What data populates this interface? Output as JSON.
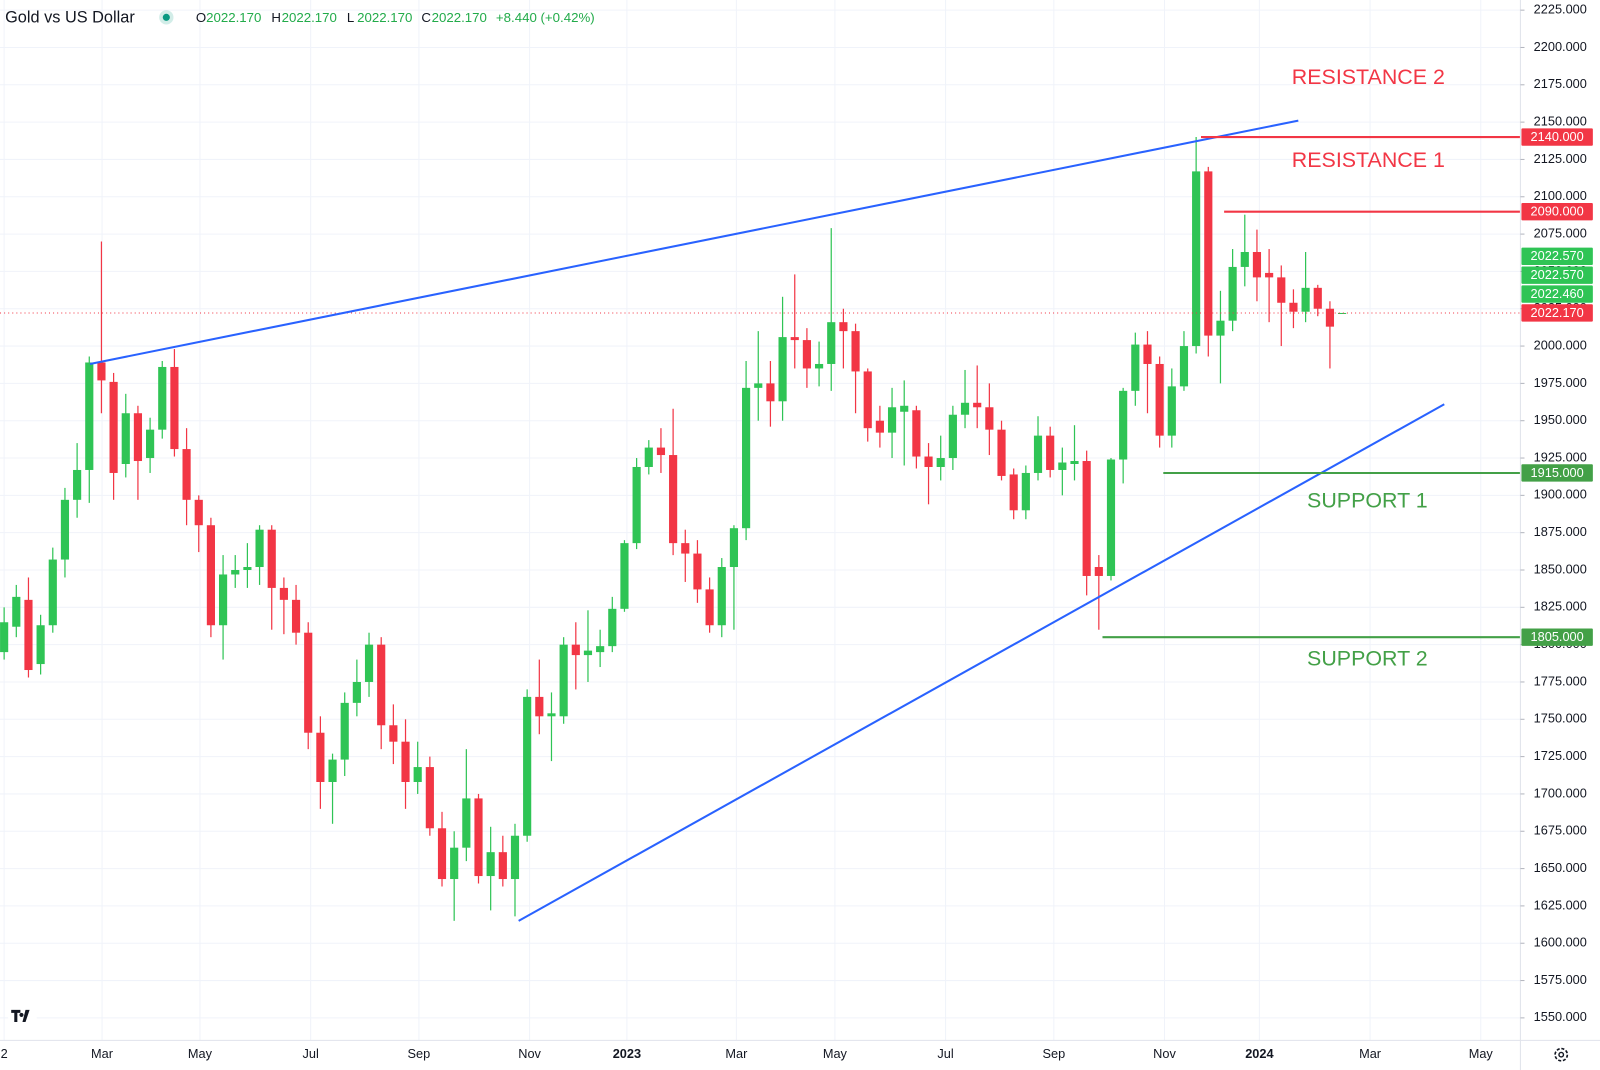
{
  "chart_data": {
    "type": "candlestick",
    "title": "Gold vs US Dollar",
    "header": {
      "ohlc": [
        {
          "key": "O",
          "value": "2022.170"
        },
        {
          "key": "H",
          "value": "2022.170"
        },
        {
          "key": "L",
          "value": "2022.170"
        },
        {
          "key": "C",
          "value": "2022.170"
        }
      ],
      "change": "+8.440 (+0.42%)"
    },
    "series": {
      "up_color": "#2fc455",
      "down_color": "#f23645",
      "open": [
        1795,
        1812,
        1830,
        1787,
        1813,
        1857,
        1897,
        1917,
        1989,
        1976,
        1921,
        1955,
        1925,
        1944,
        1986,
        1931,
        1897,
        1880,
        1813,
        1847,
        1850,
        1852,
        1877,
        1838,
        1830,
        1808,
        1741,
        1708,
        1723,
        1761,
        1775,
        1800,
        1746,
        1735,
        1708,
        1718,
        1677,
        1643,
        1664,
        1697,
        1645,
        1661,
        1643,
        1672,
        1765,
        1752,
        1752,
        1800,
        1793,
        1795,
        1799,
        1824,
        1868,
        1919,
        1932,
        1927,
        1868,
        1861,
        1837,
        1813,
        1852,
        1878,
        1972,
        1975,
        1963,
        2006,
        2004,
        1985,
        1988,
        2016,
        2010,
        1983,
        1950,
        1942,
        1956,
        1957,
        1926,
        1919,
        1925,
        1954,
        1962,
        1959,
        1944,
        1914,
        1890,
        1915,
        1940,
        1917,
        1921,
        1923,
        1852,
        1846,
        1924,
        1970,
        2001,
        1988,
        1940,
        1973,
        2000,
        2117,
        2007,
        2017,
        2053,
        2063,
        2049,
        2046,
        2029,
        2023,
        2039,
        2025,
        2022.17
      ],
      "high": [
        1825,
        1840,
        1845,
        1820,
        1865,
        1905,
        1935,
        1993,
        2070,
        1982,
        1968,
        1960,
        1952,
        1990,
        1998,
        1945,
        1900,
        1885,
        1860,
        1860,
        1868,
        1880,
        1880,
        1845,
        1840,
        1815,
        1752,
        1727,
        1768,
        1790,
        1808,
        1805,
        1760,
        1750,
        1735,
        1725,
        1688,
        1675,
        1730,
        1700,
        1678,
        1672,
        1680,
        1770,
        1790,
        1768,
        1805,
        1815,
        1823,
        1810,
        1832,
        1870,
        1925,
        1937,
        1945,
        1958,
        1877,
        1870,
        1845,
        1858,
        1880,
        1990,
        2010,
        1990,
        2033,
        2048,
        2012,
        2003,
        2079,
        2025,
        2015,
        1985,
        1960,
        1972,
        1977,
        1960,
        1935,
        1940,
        1960,
        1984,
        1987,
        1975,
        1950,
        1918,
        1920,
        1953,
        1946,
        1932,
        1947,
        1930,
        1860,
        1925,
        1972,
        2009,
        2010,
        1993,
        1985,
        2010,
        2140,
        2120,
        2037,
        2065,
        2088,
        2078,
        2065,
        2054,
        2038,
        2063,
        2041,
        2030,
        2022.17
      ],
      "low": [
        1790,
        1805,
        1778,
        1780,
        1808,
        1845,
        1885,
        1895,
        1955,
        1897,
        1912,
        1897,
        1915,
        1938,
        1926,
        1880,
        1862,
        1805,
        1790,
        1838,
        1838,
        1840,
        1810,
        1807,
        1800,
        1730,
        1690,
        1680,
        1712,
        1752,
        1765,
        1730,
        1720,
        1690,
        1700,
        1672,
        1638,
        1615,
        1655,
        1640,
        1622,
        1638,
        1618,
        1668,
        1740,
        1722,
        1747,
        1770,
        1775,
        1785,
        1795,
        1822,
        1864,
        1914,
        1915,
        1860,
        1842,
        1828,
        1808,
        1805,
        1810,
        1870,
        1950,
        1946,
        1950,
        1985,
        1972,
        1973,
        1970,
        1985,
        1955,
        1936,
        1932,
        1925,
        1920,
        1918,
        1894,
        1910,
        1917,
        1945,
        1945,
        1927,
        1910,
        1884,
        1884,
        1910,
        1912,
        1900,
        1910,
        1833,
        1810,
        1843,
        1908,
        1960,
        1955,
        1932,
        1932,
        1970,
        1995,
        1993,
        1975,
        2010,
        2040,
        2030,
        2016,
        2000,
        2012,
        2016,
        2020,
        1985,
        2022.17
      ],
      "close": [
        1815,
        1832,
        1783,
        1813,
        1857,
        1897,
        1917,
        1989,
        1977,
        1915,
        1955,
        1923,
        1944,
        1986,
        1931,
        1897,
        1880,
        1813,
        1847,
        1850,
        1852,
        1877,
        1838,
        1830,
        1808,
        1741,
        1708,
        1723,
        1761,
        1775,
        1800,
        1746,
        1735,
        1708,
        1718,
        1677,
        1643,
        1664,
        1697,
        1645,
        1661,
        1643,
        1672,
        1765,
        1752,
        1754,
        1800,
        1793,
        1796,
        1799,
        1824,
        1868,
        1919,
        1932,
        1927,
        1868,
        1861,
        1837,
        1813,
        1852,
        1878,
        1972,
        1975,
        1963,
        2006,
        2004,
        1985,
        1988,
        2016,
        2010,
        1983,
        1945,
        1942,
        1959,
        1960,
        1926,
        1919,
        1925,
        1954,
        1962,
        1959,
        1944,
        1913,
        1890,
        1915,
        1940,
        1917,
        1922,
        1923,
        1846,
        1846,
        1924,
        1970,
        2001,
        1988,
        1940,
        1973,
        2000,
        2117,
        2007,
        2017,
        2053,
        2063,
        2046,
        2046,
        2029,
        2023,
        2039,
        2025,
        2013,
        2022.17
      ]
    },
    "xlim": [
      -0.34,
      124.66
    ],
    "xticks": [
      {
        "value": 0,
        "label": "2"
      },
      {
        "value": 8.05,
        "label": "Mar"
      },
      {
        "value": 16.1,
        "label": "May"
      },
      {
        "value": 25.2,
        "label": "Jul"
      },
      {
        "value": 34.1,
        "label": "Sep"
      },
      {
        "value": 43.2,
        "label": "Nov"
      },
      {
        "value": 51.2,
        "label": "2023"
      },
      {
        "value": 60.2,
        "label": "Mar"
      },
      {
        "value": 68.3,
        "label": "May"
      },
      {
        "value": 77.4,
        "label": "Jul"
      },
      {
        "value": 86.3,
        "label": "Sep"
      },
      {
        "value": 95.4,
        "label": "Nov"
      },
      {
        "value": 103.2,
        "label": "2024"
      },
      {
        "value": 112.3,
        "label": "Mar"
      },
      {
        "value": 121.4,
        "label": "May"
      }
    ],
    "ylim": [
      1534.9,
      2231.8
    ],
    "yticks": [
      {
        "value": 1550,
        "label": "1550.000"
      },
      {
        "value": 1575,
        "label": "1575.000"
      },
      {
        "value": 1600,
        "label": "1600.000"
      },
      {
        "value": 1625,
        "label": "1625.000"
      },
      {
        "value": 1650,
        "label": "1650.000"
      },
      {
        "value": 1675,
        "label": "1675.000"
      },
      {
        "value": 1700,
        "label": "1700.000"
      },
      {
        "value": 1725,
        "label": "1725.000"
      },
      {
        "value": 1750,
        "label": "1750.000"
      },
      {
        "value": 1775,
        "label": "1775.000"
      },
      {
        "value": 1800,
        "label": "1800.000"
      },
      {
        "value": 1825,
        "label": "1825.000"
      },
      {
        "value": 1850,
        "label": "1850.000"
      },
      {
        "value": 1875,
        "label": "1875.000"
      },
      {
        "value": 1900,
        "label": "1900.000"
      },
      {
        "value": 1925,
        "label": "1925.000"
      },
      {
        "value": 1950,
        "label": "1950.000"
      },
      {
        "value": 1975,
        "label": "1975.000"
      },
      {
        "value": 2000,
        "label": "2000.000"
      },
      {
        "value": 2025,
        "label": "2025.000"
      },
      {
        "value": 2050,
        "label": "2050.000"
      },
      {
        "value": 2075,
        "label": "2075.000"
      },
      {
        "value": 2100,
        "label": "2100.000"
      },
      {
        "value": 2125,
        "label": "2125.000"
      },
      {
        "value": 2150,
        "label": "2150.000"
      },
      {
        "value": 2175,
        "label": "2175.000"
      },
      {
        "value": 2200,
        "label": "2200.000"
      },
      {
        "value": 2225,
        "label": "2225.000"
      }
    ],
    "grid": true,
    "trendlines": [
      {
        "color": "#2962ff",
        "x": [
          7.05,
          106.4
        ],
        "y": [
          1988,
          2151
        ]
      },
      {
        "color": "#2962ff",
        "x": [
          42.3,
          118.4
        ],
        "y": [
          1615,
          1961
        ]
      }
    ],
    "levels": [
      {
        "value": 2140,
        "label": "2140.000",
        "start": 98.4,
        "color": "#f23645"
      },
      {
        "value": 2090,
        "label": "2090.000",
        "start": 100.3,
        "color": "#f23645"
      },
      {
        "value": 1915,
        "label": "1915.000",
        "start": 95.3,
        "color": "#43a047"
      },
      {
        "value": 1805,
        "label": "1805.000",
        "start": 90.3,
        "color": "#43a047"
      }
    ],
    "current_price": {
      "value": 2022.17,
      "label": "2022.170",
      "color": "#f23645"
    },
    "price_badges": [
      "2022.570",
      "2022.570",
      "2022.460"
    ],
    "annotations": [
      {
        "text": "RESISTANCE 2",
        "color": "#f23645"
      },
      {
        "text": "RESISTANCE 1",
        "color": "#f23645"
      },
      {
        "text": "SUPPORT 1",
        "color": "#43a047"
      },
      {
        "text": "SUPPORT 2",
        "color": "#43a047"
      }
    ]
  }
}
